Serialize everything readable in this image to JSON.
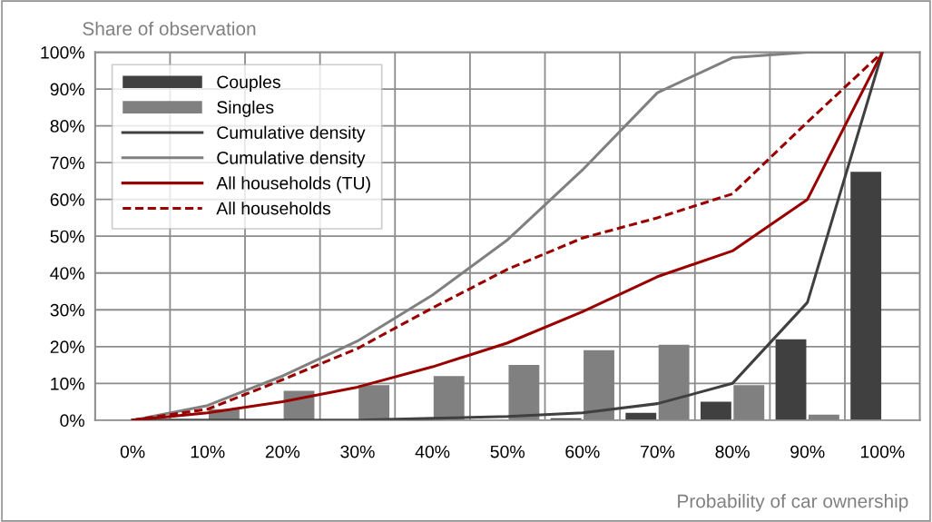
{
  "chart_data": {
    "type": "bar",
    "ylabel": "Share of observation",
    "xlabel": "Probability of car ownership",
    "categories": [
      "0%",
      "10%",
      "20%",
      "30%",
      "40%",
      "50%",
      "60%",
      "70%",
      "80%",
      "90%",
      "100%"
    ],
    "series": [
      {
        "name": "Couples",
        "color": "#404040",
        "values": [
          0,
          0,
          0,
          0,
          0,
          0,
          0.5,
          2,
          5,
          22,
          67.5
        ]
      },
      {
        "name": "Singles",
        "color": "#808080",
        "values": [
          0,
          3,
          8,
          9.5,
          12,
          15,
          19,
          20.5,
          9.5,
          1.5,
          0
        ]
      },
      {
        "name": "Cumulative density",
        "type": "line",
        "color": "#404040",
        "line_style": "solid",
        "values": [
          0,
          0,
          0,
          0,
          0.5,
          1,
          2,
          4.5,
          10,
          32,
          100
        ]
      },
      {
        "name": "Cumulative density",
        "type": "line",
        "color": "#808080",
        "line_style": "solid",
        "values": [
          0,
          4,
          12,
          21.5,
          34,
          49,
          68,
          89,
          98.5,
          100,
          100
        ]
      },
      {
        "name": "All households (TU)",
        "type": "line",
        "color": "#990000",
        "line_style": "solid",
        "values": [
          0,
          2,
          5,
          9,
          14.5,
          21,
          29.5,
          39,
          46,
          60,
          100
        ]
      },
      {
        "name": "All households",
        "type": "line",
        "color": "#990000",
        "line_style": "dashed",
        "values": [
          0,
          3,
          11,
          19.5,
          30.5,
          41,
          49.5,
          55,
          61.5,
          81,
          100
        ]
      }
    ],
    "ylim": [
      0,
      100
    ],
    "yticks": [
      {
        "value": 0,
        "label": "0%"
      },
      {
        "value": 10,
        "label": "10%"
      },
      {
        "value": 20,
        "label": "20%"
      },
      {
        "value": 30,
        "label": "30%"
      },
      {
        "value": 40,
        "label": "40%"
      },
      {
        "value": 50,
        "label": "50%"
      },
      {
        "value": 60,
        "label": "60%"
      },
      {
        "value": 70,
        "label": "70%"
      },
      {
        "value": 80,
        "label": "80%"
      },
      {
        "value": 90,
        "label": "90%"
      },
      {
        "value": 100,
        "label": "100%"
      }
    ],
    "grid": true,
    "legend": "top left"
  }
}
